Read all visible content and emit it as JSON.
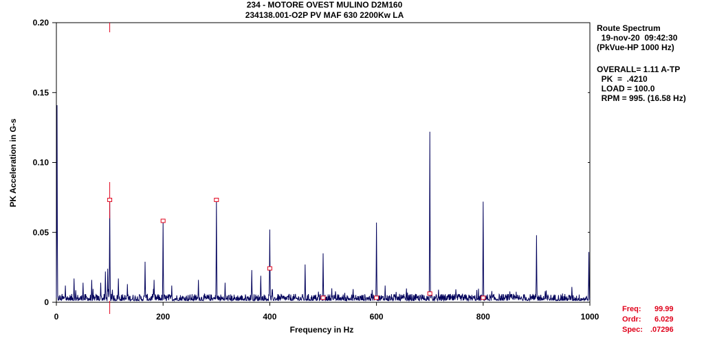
{
  "header": {
    "title_line1": "234  - MOTORE OVEST MULINO D2M160",
    "title_line2": "234138.001-O2P   PV MAF 630 2200Kw LA"
  },
  "info_panel": {
    "line1": "Route Spectrum",
    "line2": "  19-nov-20  09:42:30",
    "line3": "(PkVue-HP 1000 Hz)",
    "overall": "OVERALL= 1.11 A-TP",
    "pk": "  PK  =  .4210",
    "load": "  LOAD = 100.0",
    "rpm": "  RPM = 995. (16.58 Hz)"
  },
  "cursor": {
    "freq_label": "Freq:",
    "freq_value": "99.99",
    "ordr_label": "Ordr:",
    "ordr_value": "6.029",
    "spec_label": "Spec:",
    "spec_value": ".07296"
  },
  "colors": {
    "spectrum": "#00005a",
    "cursor": "#e0001a",
    "axes": "#000000"
  },
  "chart_data": {
    "type": "line",
    "title": "234  - MOTORE OVEST MULINO D2M160",
    "subtitle": "234138.001-O2P   PV MAF 630 2200Kw LA",
    "xlabel": "Frequency in Hz",
    "ylabel": "PK Acceleration in G-s",
    "xlim": [
      0,
      1000
    ],
    "ylim": [
      0,
      0.2
    ],
    "x_ticks": [
      0,
      200,
      400,
      600,
      800,
      1000
    ],
    "y_ticks": [
      0,
      0.05,
      0.1,
      0.15,
      0.2
    ],
    "y_tick_labels": [
      "0",
      "0.05",
      "0.10",
      "0.15",
      "0.20"
    ],
    "grid": false,
    "noise_floor": 0.003,
    "peaks": [
      {
        "x": 1,
        "y": 0.141
      },
      {
        "x": 16.6,
        "y": 0.012
      },
      {
        "x": 33.2,
        "y": 0.017
      },
      {
        "x": 50,
        "y": 0.014
      },
      {
        "x": 66.4,
        "y": 0.016
      },
      {
        "x": 83,
        "y": 0.014
      },
      {
        "x": 92,
        "y": 0.022
      },
      {
        "x": 96,
        "y": 0.024
      },
      {
        "x": 99.99,
        "y": 0.073
      },
      {
        "x": 116,
        "y": 0.017
      },
      {
        "x": 133,
        "y": 0.013
      },
      {
        "x": 166,
        "y": 0.029
      },
      {
        "x": 183,
        "y": 0.016
      },
      {
        "x": 200,
        "y": 0.058
      },
      {
        "x": 216,
        "y": 0.012
      },
      {
        "x": 266,
        "y": 0.016
      },
      {
        "x": 300,
        "y": 0.073
      },
      {
        "x": 316,
        "y": 0.014
      },
      {
        "x": 366,
        "y": 0.023
      },
      {
        "x": 383,
        "y": 0.019
      },
      {
        "x": 400,
        "y": 0.052
      },
      {
        "x": 466,
        "y": 0.027
      },
      {
        "x": 500,
        "y": 0.035
      },
      {
        "x": 516,
        "y": 0.01
      },
      {
        "x": 600,
        "y": 0.057
      },
      {
        "x": 616,
        "y": 0.012
      },
      {
        "x": 700,
        "y": 0.122
      },
      {
        "x": 716,
        "y": 0.009
      },
      {
        "x": 800,
        "y": 0.072
      },
      {
        "x": 816,
        "y": 0.008
      },
      {
        "x": 900,
        "y": 0.048
      },
      {
        "x": 916,
        "y": 0.008
      },
      {
        "x": 966,
        "y": 0.011
      },
      {
        "x": 998,
        "y": 0.036
      }
    ],
    "harmonic_markers": [
      {
        "x": 99.99,
        "y": 0.073
      },
      {
        "x": 200,
        "y": 0.058
      },
      {
        "x": 300,
        "y": 0.073
      },
      {
        "x": 400,
        "y": 0.024
      },
      {
        "x": 500,
        "y": 0.003
      },
      {
        "x": 600,
        "y": 0.003
      },
      {
        "x": 700,
        "y": 0.006
      },
      {
        "x": 800,
        "y": 0.003
      }
    ],
    "cursor_x": 99.99
  }
}
